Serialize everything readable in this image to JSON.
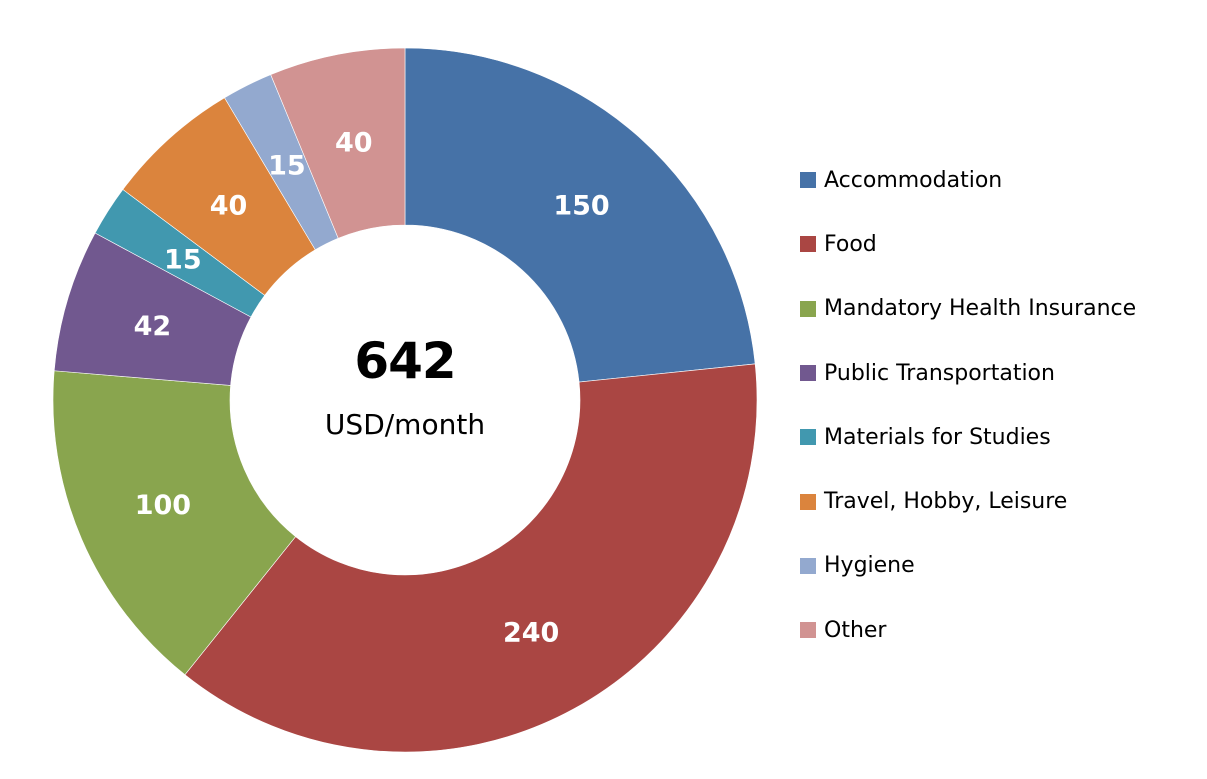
{
  "chart_data": {
    "type": "pie",
    "subtype": "donut",
    "title": "",
    "center_total": "642",
    "center_unit": "USD/month",
    "categories": [
      "Accommodation",
      "Food",
      "Mandatory Health Insurance",
      "Public Transportation",
      "Materials for Studies",
      "Travel, Hobby, Leisure",
      "Hygiene",
      "Other"
    ],
    "values": [
      150,
      240,
      100,
      42,
      15,
      40,
      15,
      40
    ],
    "colors": [
      "#4672A7",
      "#AA4643",
      "#89A54E",
      "#71588F",
      "#4198AF",
      "#DB843D",
      "#93A9CF",
      "#D19392"
    ],
    "legend_position": "right",
    "data_labels": true
  },
  "center": {
    "total": "642",
    "unit": "USD/month"
  },
  "legend": {
    "items": [
      {
        "label": "Accommodation",
        "color": "#4672A7"
      },
      {
        "label": "Food",
        "color": "#AA4643"
      },
      {
        "label": "Mandatory Health Insurance",
        "color": "#89A54E"
      },
      {
        "label": "Public Transportation",
        "color": "#71588F"
      },
      {
        "label": "Materials for Studies",
        "color": "#4198AF"
      },
      {
        "label": "Travel, Hobby, Leisure",
        "color": "#DB843D"
      },
      {
        "label": "Hygiene",
        "color": "#93A9CF"
      },
      {
        "label": "Other",
        "color": "#D19392"
      }
    ]
  }
}
